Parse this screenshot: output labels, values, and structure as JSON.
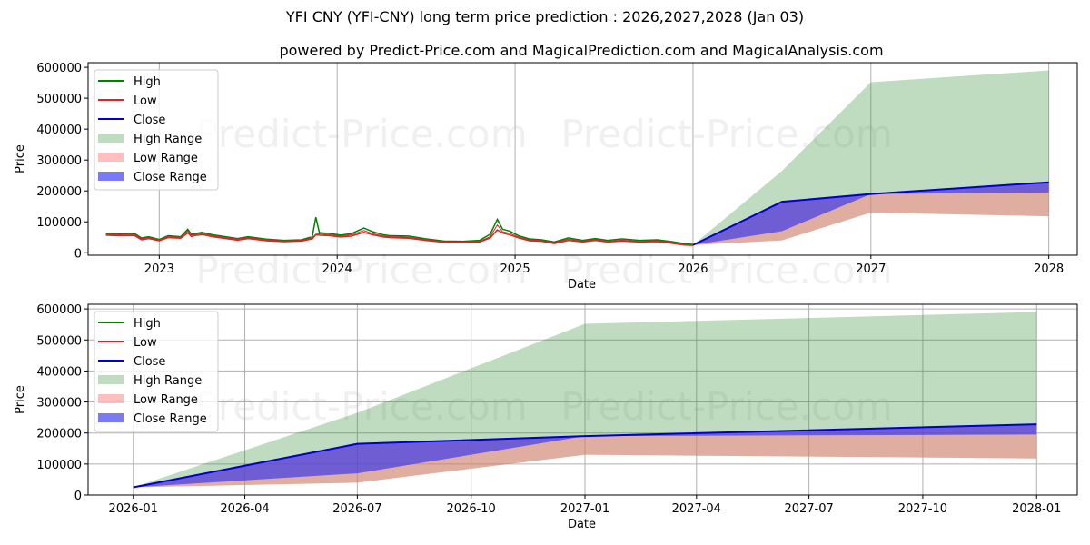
{
  "title": "YFI CNY (YFI-CNY) long term price prediction : 2026,2027,2028 (Jan 03)",
  "subtitle": "powered by Predict-Price.com and MagicalPrediction.com and MagicalAnalysis.com",
  "watermark": "Predict-Price.com",
  "colors": {
    "high": "#008000",
    "low": "#d62728",
    "close": "#0000cc",
    "high_range": "#2e8b2e",
    "low_range": "#ff8080",
    "close_range": "#3333ee",
    "grid": "#b0b0b0"
  },
  "legend": [
    "High",
    "Low",
    "Close",
    "High Range",
    "Low Range",
    "Close Range"
  ],
  "chart_data": [
    {
      "type": "line",
      "name": "top",
      "title": "YFI CNY (YFI-CNY) long term price prediction : 2026,2027,2028 (Jan 03)",
      "xlabel": "Date",
      "ylabel": "Price",
      "xlim": [
        2022.6,
        2028.16
      ],
      "ylim": [
        -8000,
        615000
      ],
      "xticks": [
        2023,
        2024,
        2025,
        2026,
        2027,
        2028
      ],
      "xtick_labels": [
        "2023",
        "2024",
        "2025",
        "2026",
        "2027",
        "2028"
      ],
      "yticks": [
        0,
        100000,
        200000,
        300000,
        400000,
        500000,
        600000
      ],
      "ytick_labels": [
        "0",
        "100000",
        "200000",
        "300000",
        "400000",
        "500000",
        "600000"
      ],
      "grid": "x-only",
      "history": {
        "x": [
          2022.7,
          2022.78,
          2022.86,
          2022.9,
          2022.94,
          2023.0,
          2023.05,
          2023.12,
          2023.16,
          2023.18,
          2023.2,
          2023.24,
          2023.3,
          2023.36,
          2023.44,
          2023.5,
          2023.6,
          2023.7,
          2023.8,
          2023.86,
          2023.88,
          2023.9,
          2023.96,
          2024.02,
          2024.08,
          2024.15,
          2024.2,
          2024.26,
          2024.3,
          2024.4,
          2024.5,
          2024.6,
          2024.7,
          2024.8,
          2024.86,
          2024.9,
          2024.93,
          2024.97,
          2025.02,
          2025.08,
          2025.15,
          2025.22,
          2025.3,
          2025.38,
          2025.45,
          2025.52,
          2025.6,
          2025.7,
          2025.8,
          2025.88,
          2025.95,
          2026.0
        ],
        "high": [
          63000,
          61000,
          63000,
          48000,
          52000,
          43000,
          55000,
          52000,
          76000,
          60000,
          62000,
          66000,
          58000,
          53000,
          46000,
          52000,
          44000,
          40000,
          42000,
          52000,
          115000,
          65000,
          62000,
          57000,
          62000,
          80000,
          68000,
          58000,
          55000,
          54000,
          45000,
          38000,
          37000,
          40000,
          60000,
          108000,
          76000,
          70000,
          55000,
          45000,
          42000,
          35000,
          48000,
          40000,
          46000,
          40000,
          45000,
          40000,
          42000,
          36000,
          30000,
          27000
        ],
        "low": [
          57000,
          55000,
          56000,
          42000,
          46000,
          39000,
          49000,
          47000,
          64000,
          53000,
          56000,
          59000,
          52000,
          47000,
          41000,
          46000,
          39000,
          36000,
          38000,
          45000,
          58000,
          57000,
          55000,
          51000,
          54000,
          66000,
          58000,
          51000,
          49000,
          47000,
          40000,
          34000,
          33000,
          35000,
          48000,
          74000,
          64000,
          58000,
          48000,
          39000,
          37000,
          30000,
          40000,
          35000,
          40000,
          35000,
          38000,
          35000,
          36000,
          31000,
          25000,
          24000
        ],
        "close": [
          60000,
          58000,
          60000,
          45000,
          49000,
          41000,
          52000,
          50000,
          70000,
          57000,
          59000,
          62000,
          55000,
          50000,
          44000,
          49000,
          42000,
          38000,
          40000,
          48000,
          60000,
          61000,
          58000,
          54000,
          58000,
          72000,
          62000,
          54000,
          52000,
          50000,
          42000,
          36000,
          35000,
          37000,
          52000,
          90000,
          68000,
          63000,
          51000,
          42000,
          39000,
          32000,
          44000,
          37000,
          43000,
          37000,
          41000,
          37000,
          39000,
          33000,
          27000,
          25000
        ]
      },
      "forecast": {
        "x": [
          2026.0,
          2026.5,
          2027.0,
          2028.0
        ],
        "high_range_top": [
          25000,
          265000,
          552000,
          590000
        ],
        "low_range_bottom": [
          25000,
          40000,
          130000,
          118000
        ],
        "close": [
          25000,
          165000,
          190000,
          228000
        ],
        "close_range_bottom": [
          25000,
          70000,
          190000,
          195000
        ]
      }
    },
    {
      "type": "line",
      "name": "bottom",
      "xlabel": "Date",
      "ylabel": "Price",
      "xlim": [
        2025.9,
        2028.09
      ],
      "ylim": [
        0,
        615000
      ],
      "xticks": [
        2026.0,
        2026.247,
        2026.496,
        2026.748,
        2027.0,
        2027.247,
        2027.496,
        2027.748,
        2028.0
      ],
      "xtick_labels": [
        "2026-01",
        "2026-04",
        "2026-07",
        "2026-10",
        "2027-01",
        "2027-04",
        "2027-07",
        "2027-10",
        "2028-01"
      ],
      "yticks": [
        0,
        100000,
        200000,
        300000,
        400000,
        500000,
        600000
      ],
      "ytick_labels": [
        "0",
        "100000",
        "200000",
        "300000",
        "400000",
        "500000",
        "600000"
      ],
      "grid": "both",
      "forecast": {
        "x": [
          2026.0,
          2026.496,
          2027.0,
          2028.0
        ],
        "high_range_top": [
          25000,
          265000,
          552000,
          590000
        ],
        "low_range_bottom": [
          25000,
          40000,
          130000,
          118000
        ],
        "close": [
          25000,
          165000,
          190000,
          228000
        ],
        "close_range_bottom": [
          25000,
          70000,
          190000,
          195000
        ]
      }
    }
  ]
}
